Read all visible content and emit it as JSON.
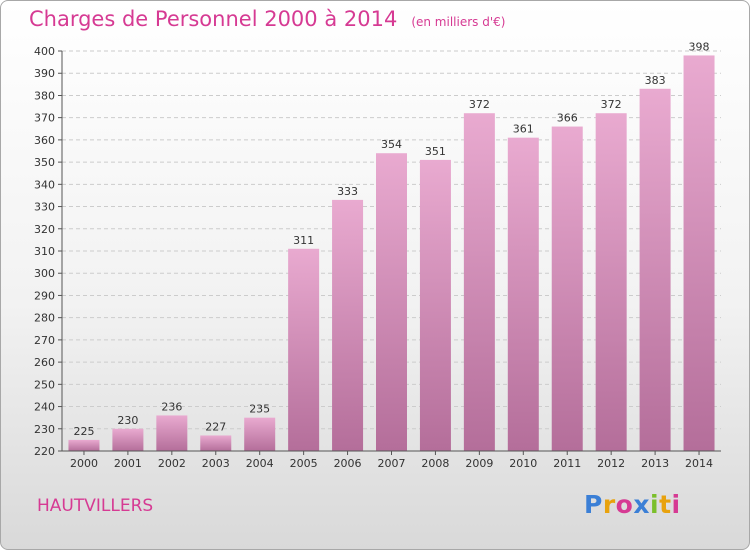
{
  "title": "Charges de Personnel 2000 à 2014",
  "subtitle": "(en milliers d'€)",
  "commune": "HAUTVILLERS",
  "logo": {
    "p": "P",
    "r": "r",
    "o": "o",
    "x": "x",
    "i1": "i",
    "t": "t",
    "i2": "i"
  },
  "colors": {
    "title": "#d63a93",
    "bar_top": "#e9aad0",
    "bar_bottom": "#b46e9a",
    "logo_blue": "#3b7fd6",
    "logo_orange": "#e8a20d",
    "logo_pink": "#d63a93",
    "logo_green": "#7bbf2a"
  },
  "chart_data": {
    "type": "bar",
    "categories": [
      "2000",
      "2001",
      "2002",
      "2003",
      "2004",
      "2005",
      "2006",
      "2007",
      "2008",
      "2009",
      "2010",
      "2011",
      "2012",
      "2013",
      "2014"
    ],
    "values": [
      225,
      230,
      236,
      227,
      235,
      311,
      333,
      354,
      351,
      372,
      361,
      366,
      372,
      383,
      398
    ],
    "yticks": [
      "220",
      "230",
      "240",
      "250",
      "260",
      "270",
      "280",
      "290",
      "300",
      "310",
      "320",
      "330",
      "340",
      "350",
      "360",
      "370",
      "380",
      "390",
      "400"
    ],
    "ylim": [
      220,
      400
    ],
    "grid": true,
    "legend": "none"
  }
}
